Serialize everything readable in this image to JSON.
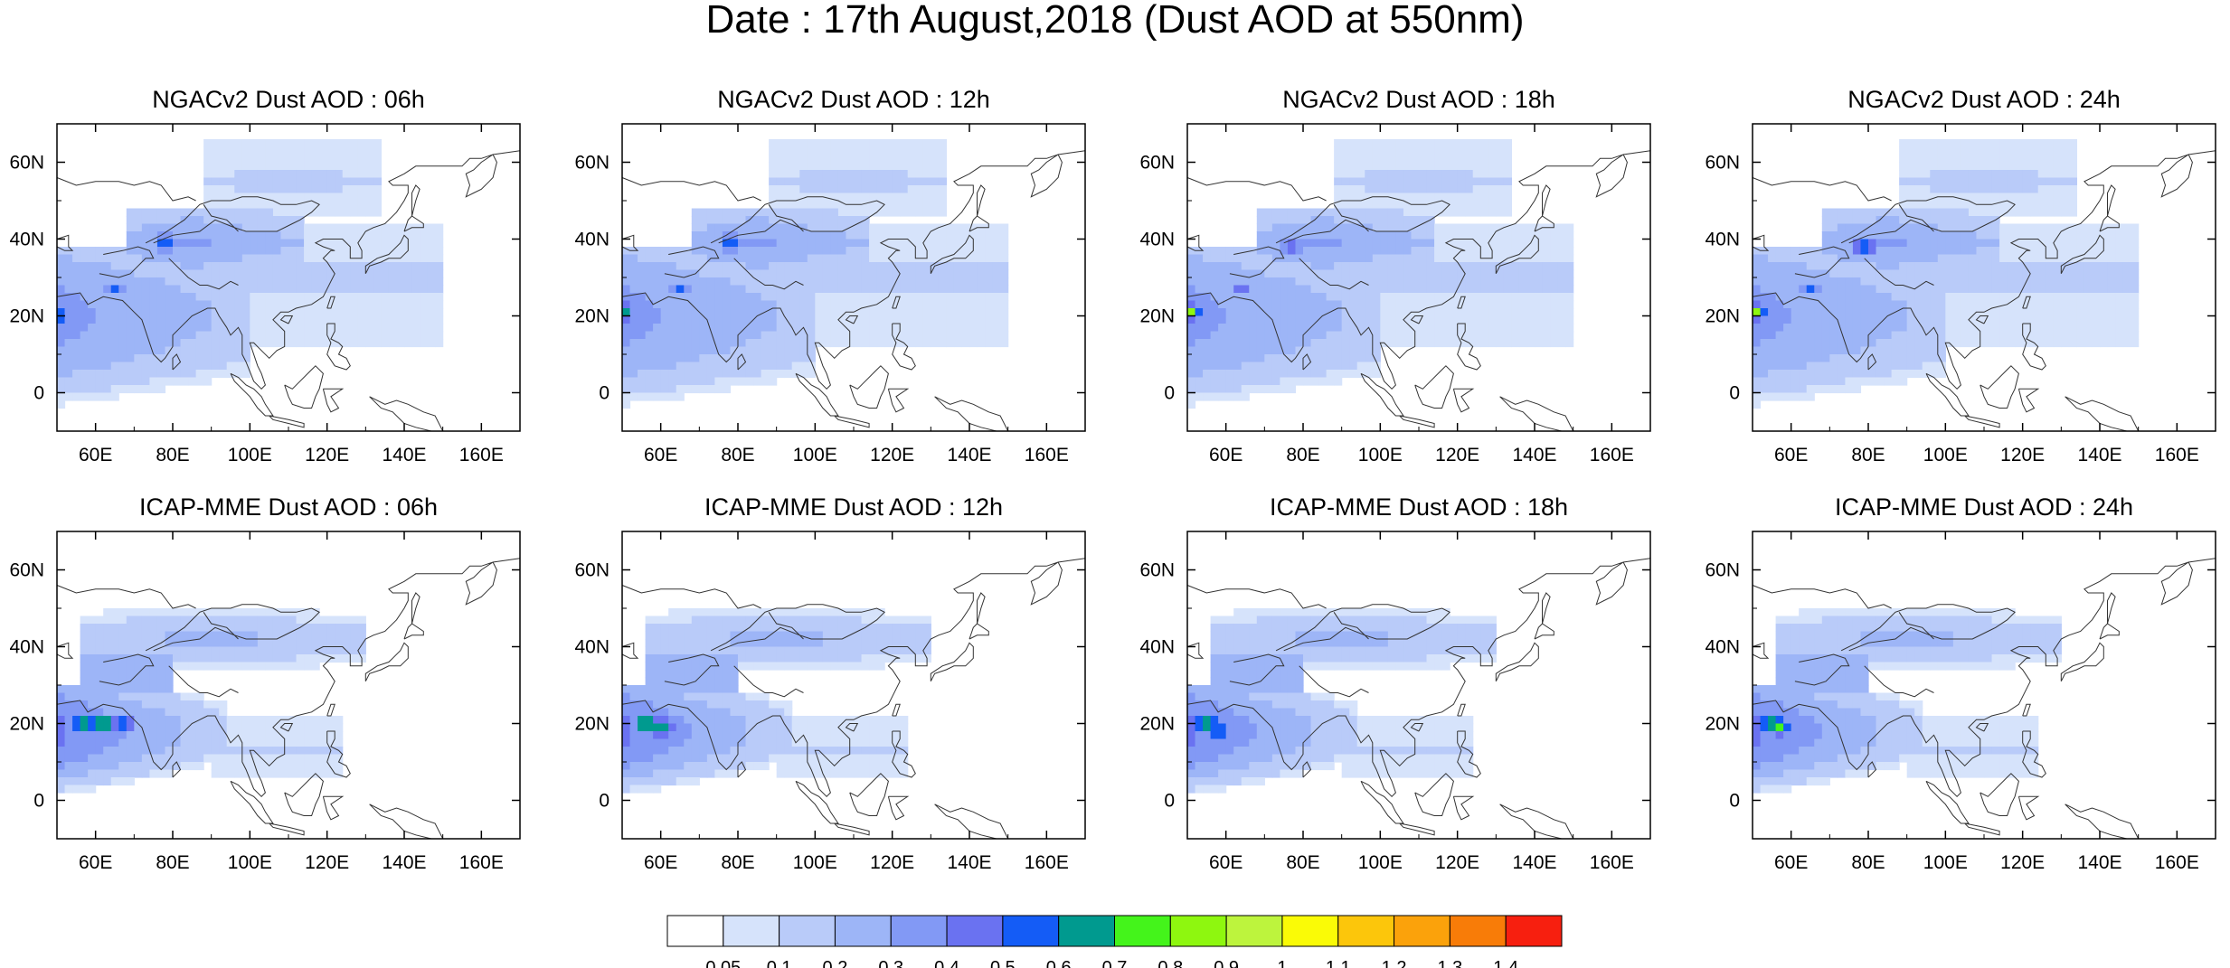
{
  "title": "Date : 17th August,2018 (Dust AOD at 550nm)",
  "colors": {
    "land_outline": "#333333",
    "frame": "#000000",
    "levels": [
      "#ffffff",
      "#d6e3fb",
      "#b9cbf9",
      "#9db5f7",
      "#8299f5",
      "#6a72f1",
      "#145cf6",
      "#009a8f",
      "#44f41b",
      "#8ef70f",
      "#bdf43d",
      "#fafb06",
      "#fcc60b",
      "#fba20b",
      "#f87c08",
      "#f71f0f"
    ]
  },
  "colorbar": {
    "labels": [
      "0.05",
      "0.1",
      "0.2",
      "0.3",
      "0.4",
      "0.5",
      "0.6",
      "0.7",
      "0.8",
      "0.9",
      "1",
      "1.1",
      "1.2",
      "1.3",
      "1.4"
    ]
  },
  "chart_data": [
    {
      "type": "heatmap",
      "title": "NGACv2 Dust AOD : 06h",
      "model": "ngac",
      "hour": 6,
      "x_ticks": [
        "60E",
        "80E",
        "100E",
        "120E",
        "140E",
        "160E"
      ],
      "y_ticks": [
        "60N",
        "40N",
        "20N",
        "0"
      ],
      "xlim": [
        50,
        170
      ],
      "ylim": [
        -10,
        70
      ],
      "hotspots": [
        {
          "lon": 50,
          "lat": 20,
          "aod": 0.8
        },
        {
          "lon": 78,
          "lat": 39,
          "aod": 0.7
        },
        {
          "lon": 65,
          "lat": 27,
          "aod": 0.5
        }
      ]
    },
    {
      "type": "heatmap",
      "title": "NGACv2 Dust AOD : 12h",
      "model": "ngac",
      "hour": 12,
      "x_ticks": [
        "60E",
        "80E",
        "100E",
        "120E",
        "140E",
        "160E"
      ],
      "y_ticks": [
        "60N",
        "40N",
        "20N",
        "0"
      ],
      "xlim": [
        50,
        170
      ],
      "ylim": [
        -10,
        70
      ],
      "hotspots": [
        {
          "lon": 50,
          "lat": 21,
          "aod": 0.8
        },
        {
          "lon": 78,
          "lat": 39,
          "aod": 0.6
        },
        {
          "lon": 65,
          "lat": 27,
          "aod": 0.5
        }
      ]
    },
    {
      "type": "heatmap",
      "title": "NGACv2 Dust AOD : 18h",
      "model": "ngac",
      "hour": 18,
      "x_ticks": [
        "60E",
        "80E",
        "100E",
        "120E",
        "140E",
        "160E"
      ],
      "y_ticks": [
        "60N",
        "40N",
        "20N",
        "0"
      ],
      "xlim": [
        50,
        170
      ],
      "ylim": [
        -10,
        70
      ],
      "hotspots": [
        {
          "lon": 51,
          "lat": 21,
          "aod": 0.8
        },
        {
          "lon": 77,
          "lat": 38,
          "aod": 0.6
        },
        {
          "lon": 64,
          "lat": 27,
          "aod": 0.5
        }
      ]
    },
    {
      "type": "heatmap",
      "title": "NGACv2 Dust AOD : 24h",
      "model": "ngac",
      "hour": 24,
      "x_ticks": [
        "60E",
        "80E",
        "100E",
        "120E",
        "140E",
        "160E"
      ],
      "y_ticks": [
        "60N",
        "40N",
        "20N",
        "0"
      ],
      "xlim": [
        50,
        170
      ],
      "ylim": [
        -10,
        70
      ],
      "hotspots": [
        {
          "lon": 51,
          "lat": 21,
          "aod": 0.8
        },
        {
          "lon": 79,
          "lat": 38,
          "aod": 0.7
        },
        {
          "lon": 65,
          "lat": 27,
          "aod": 0.5
        }
      ]
    },
    {
      "type": "heatmap",
      "title": "ICAP-MME Dust AOD : 06h",
      "model": "icap",
      "hour": 6,
      "x_ticks": [
        "60E",
        "80E",
        "100E",
        "120E",
        "140E",
        "160E"
      ],
      "y_ticks": [
        "60N",
        "40N",
        "20N",
        "0"
      ],
      "xlim": [
        50,
        170
      ],
      "ylim": [
        -10,
        70
      ],
      "hotspots": [
        {
          "lon": 57,
          "lat": 20,
          "aod": 0.8
        },
        {
          "lon": 62,
          "lat": 20,
          "aod": 0.8
        },
        {
          "lon": 67,
          "lat": 20,
          "aod": 0.7
        }
      ]
    },
    {
      "type": "heatmap",
      "title": "ICAP-MME Dust AOD : 12h",
      "model": "icap",
      "hour": 12,
      "x_ticks": [
        "60E",
        "80E",
        "100E",
        "120E",
        "140E",
        "160E"
      ],
      "y_ticks": [
        "60N",
        "40N",
        "20N",
        "0"
      ],
      "xlim": [
        50,
        170
      ],
      "ylim": [
        -10,
        70
      ],
      "hotspots": [
        {
          "lon": 56,
          "lat": 20,
          "aod": 0.8
        },
        {
          "lon": 60,
          "lat": 19,
          "aod": 0.7
        }
      ]
    },
    {
      "type": "heatmap",
      "title": "ICAP-MME Dust AOD : 18h",
      "model": "icap",
      "hour": 18,
      "x_ticks": [
        "60E",
        "80E",
        "100E",
        "120E",
        "140E",
        "160E"
      ],
      "y_ticks": [
        "60N",
        "40N",
        "20N",
        "0"
      ],
      "xlim": [
        50,
        170
      ],
      "ylim": [
        -10,
        70
      ],
      "hotspots": [
        {
          "lon": 55,
          "lat": 20,
          "aod": 0.8
        },
        {
          "lon": 58,
          "lat": 18,
          "aod": 0.7
        }
      ]
    },
    {
      "type": "heatmap",
      "title": "ICAP-MME Dust AOD : 24h",
      "model": "icap",
      "hour": 24,
      "x_ticks": [
        "60E",
        "80E",
        "100E",
        "120E",
        "140E",
        "160E"
      ],
      "y_ticks": [
        "60N",
        "40N",
        "20N",
        "0"
      ],
      "xlim": [
        50,
        170
      ],
      "ylim": [
        -10,
        70
      ],
      "hotspots": [
        {
          "lon": 55,
          "lat": 20,
          "aod": 0.8
        },
        {
          "lon": 57,
          "lat": 19,
          "aod": 0.7
        }
      ]
    }
  ]
}
